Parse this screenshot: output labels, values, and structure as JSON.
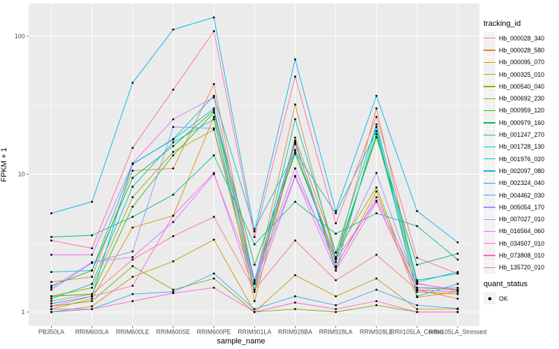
{
  "chart_data": {
    "type": "line",
    "title": "",
    "xlabel": "sample_name",
    "ylabel": "FPKM + 1",
    "y_scale": "log10",
    "ylim": [
      1,
      170
    ],
    "y_ticks": [
      1,
      10,
      100
    ],
    "y_minor_ticks": [
      3.162,
      31.62
    ],
    "grid": "on",
    "panel_bg": "#EBEBEB",
    "grid_color": "#FFFFFF",
    "tick_label_color": "#4D4D4D",
    "point_marker": {
      "shape": "square",
      "color": "#000000"
    },
    "legend_title": "tracking_id",
    "legend_position": "right",
    "categories": [
      "PB350LA",
      "RRIM600LA",
      "RRIM600LE",
      "RRIM600SE",
      "RRIM600PE",
      "RRIM901LA",
      "RRIM928BA",
      "RRIM928LA",
      "RRIM928LE",
      "RRII105LA_Control",
      "RRII105LA_Stressed"
    ],
    "series": [
      {
        "name": "Hb_000028_340",
        "color": "#F8766D",
        "values": [
          1.2,
          1.35,
          2.4,
          3.55,
          4.9,
          1.45,
          3.3,
          1.7,
          2.6,
          1.45,
          1.25
        ]
      },
      {
        "name": "Hb_000028_580",
        "color": "#EA8331",
        "values": [
          1.65,
          1.8,
          10.6,
          11,
          45,
          1.6,
          32,
          2.4,
          30,
          1.6,
          1.45
        ]
      },
      {
        "name": "Hb_000095_070",
        "color": "#D89000",
        "values": [
          1.05,
          1.25,
          4.1,
          5.0,
          26,
          1.2,
          17,
          2.1,
          7.5,
          1.28,
          1.4
        ]
      },
      {
        "name": "Hb_000325_010",
        "color": "#C09B00",
        "values": [
          1.0,
          1.1,
          1.8,
          2.33,
          3.35,
          1.0,
          1.85,
          1.3,
          1.75,
          1.05,
          1.05
        ]
      },
      {
        "name": "Hb_000540_040",
        "color": "#A3A500",
        "values": [
          1.3,
          1.5,
          6.8,
          14.5,
          21,
          1.4,
          18.4,
          2.7,
          8.0,
          1.4,
          1.35
        ]
      },
      {
        "name": "Hb_000692_230",
        "color": "#7CAE00",
        "values": [
          1.1,
          1.2,
          2.15,
          1.45,
          1.75,
          1.0,
          1.05,
          1.0,
          1.12,
          1.0,
          1.0
        ]
      },
      {
        "name": "Hb_000959_120",
        "color": "#39B600",
        "values": [
          1.3,
          1.35,
          5.8,
          13.7,
          28,
          1.6,
          15,
          2.3,
          19.5,
          1.5,
          1.45
        ]
      },
      {
        "name": "Hb_000979_160",
        "color": "#00BB4E",
        "values": [
          1.55,
          2.0,
          9.4,
          16,
          29,
          2.2,
          14,
          2.5,
          18.5,
          2.2,
          2.65
        ]
      },
      {
        "name": "Hb_001247_270",
        "color": "#00C087",
        "values": [
          3.5,
          3.6,
          4.9,
          7.1,
          13.7,
          3.1,
          6.3,
          3.7,
          5.2,
          4.2,
          2.4
        ]
      },
      {
        "name": "Hb_001728_130",
        "color": "#00C0AF",
        "values": [
          1.25,
          1.6,
          8.1,
          17,
          25,
          1.45,
          25,
          2.7,
          23,
          1.7,
          1.9
        ]
      },
      {
        "name": "Hb_001976_020",
        "color": "#00BFC4",
        "values": [
          1.95,
          2.0,
          11.8,
          18,
          37,
          4.0,
          14.5,
          5.2,
          20.5,
          1.65,
          1.95
        ]
      },
      {
        "name": "Hb_002097_080",
        "color": "#00BAE0",
        "values": [
          1.15,
          1.3,
          11.9,
          17.8,
          30,
          1.7,
          17.5,
          2.0,
          22,
          1.3,
          1.6
        ]
      },
      {
        "name": "Hb_002324_040",
        "color": "#00B0F6",
        "values": [
          5.2,
          6.3,
          46,
          112,
          137,
          3.85,
          68,
          5.4,
          37,
          5.4,
          3.2
        ]
      },
      {
        "name": "Hb_004462_030",
        "color": "#35A2FF",
        "values": [
          1.0,
          1.05,
          1.35,
          1.4,
          1.9,
          1.05,
          1.3,
          1.12,
          1.45,
          1.12,
          1.06
        ]
      },
      {
        "name": "Hb_005054_170",
        "color": "#9590FF",
        "values": [
          1.45,
          2.27,
          2.75,
          22,
          21.5,
          1.6,
          9.7,
          2.45,
          10.2,
          1.5,
          1.5
        ]
      },
      {
        "name": "Hb_007027_010",
        "color": "#C77CFF",
        "values": [
          1.5,
          2.3,
          2.5,
          4.5,
          10.0,
          1.65,
          11,
          2.15,
          6.8,
          1.62,
          1.42
        ]
      },
      {
        "name": "Hb_016564_060",
        "color": "#E76BF3",
        "values": [
          2.6,
          2.6,
          12.0,
          25,
          36,
          1.6,
          16.5,
          2.4,
          6.4,
          1.45,
          1.4
        ]
      },
      {
        "name": "Hb_034507_010",
        "color": "#FA62DB",
        "values": [
          1.1,
          1.3,
          1.55,
          5.0,
          10.2,
          1.4,
          9.6,
          2.0,
          6.3,
          1.44,
          1.4
        ]
      },
      {
        "name": "Hb_073808_010",
        "color": "#FF61CC",
        "values": [
          1.05,
          1.05,
          1.2,
          1.37,
          1.5,
          1.0,
          1.17,
          1.05,
          1.2,
          1.0,
          1.0
        ]
      },
      {
        "name": "Hb_135720_010",
        "color": "#FF6A98",
        "values": [
          3.3,
          2.9,
          15.5,
          41,
          109,
          3.5,
          51,
          4.4,
          26,
          2.47,
          1.9
        ]
      }
    ],
    "quant_legend": {
      "title": "quant_status",
      "items": [
        {
          "label": "OK",
          "marker": "black-square"
        }
      ]
    }
  }
}
